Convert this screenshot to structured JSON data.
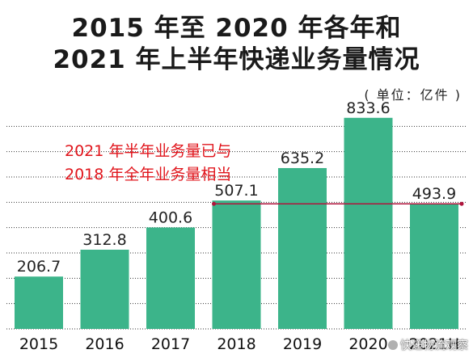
{
  "title_line1": "2015 年至 2020 年各年和",
  "title_line2": "2021 年上半年快递业务量情况",
  "unit_label": "( 单位：亿件 )",
  "annotation_line1": "2021 年半年业务量已与",
  "annotation_line2": "2018 年全年业务量相当",
  "watermark": "快递物流观察",
  "colors": {
    "bar": "#3cb48a",
    "annotation": "#e0141b",
    "reference_line": "#b0143c",
    "grid": "#333333"
  },
  "chart_data": {
    "type": "bar",
    "categories": [
      "2015",
      "2016",
      "2017",
      "2018",
      "2019",
      "2020",
      "2021H"
    ],
    "values": [
      206.7,
      312.8,
      400.6,
      507.1,
      635.2,
      833.6,
      493.9
    ],
    "value_labels": [
      "206.7",
      "312.8",
      "400.6",
      "507.1",
      "635.2",
      "833.6",
      "493.9"
    ],
    "ylim": [
      0,
      900
    ],
    "grid": true,
    "reference_line": {
      "value": 493.9,
      "from": "2018",
      "to": "2021H"
    }
  }
}
